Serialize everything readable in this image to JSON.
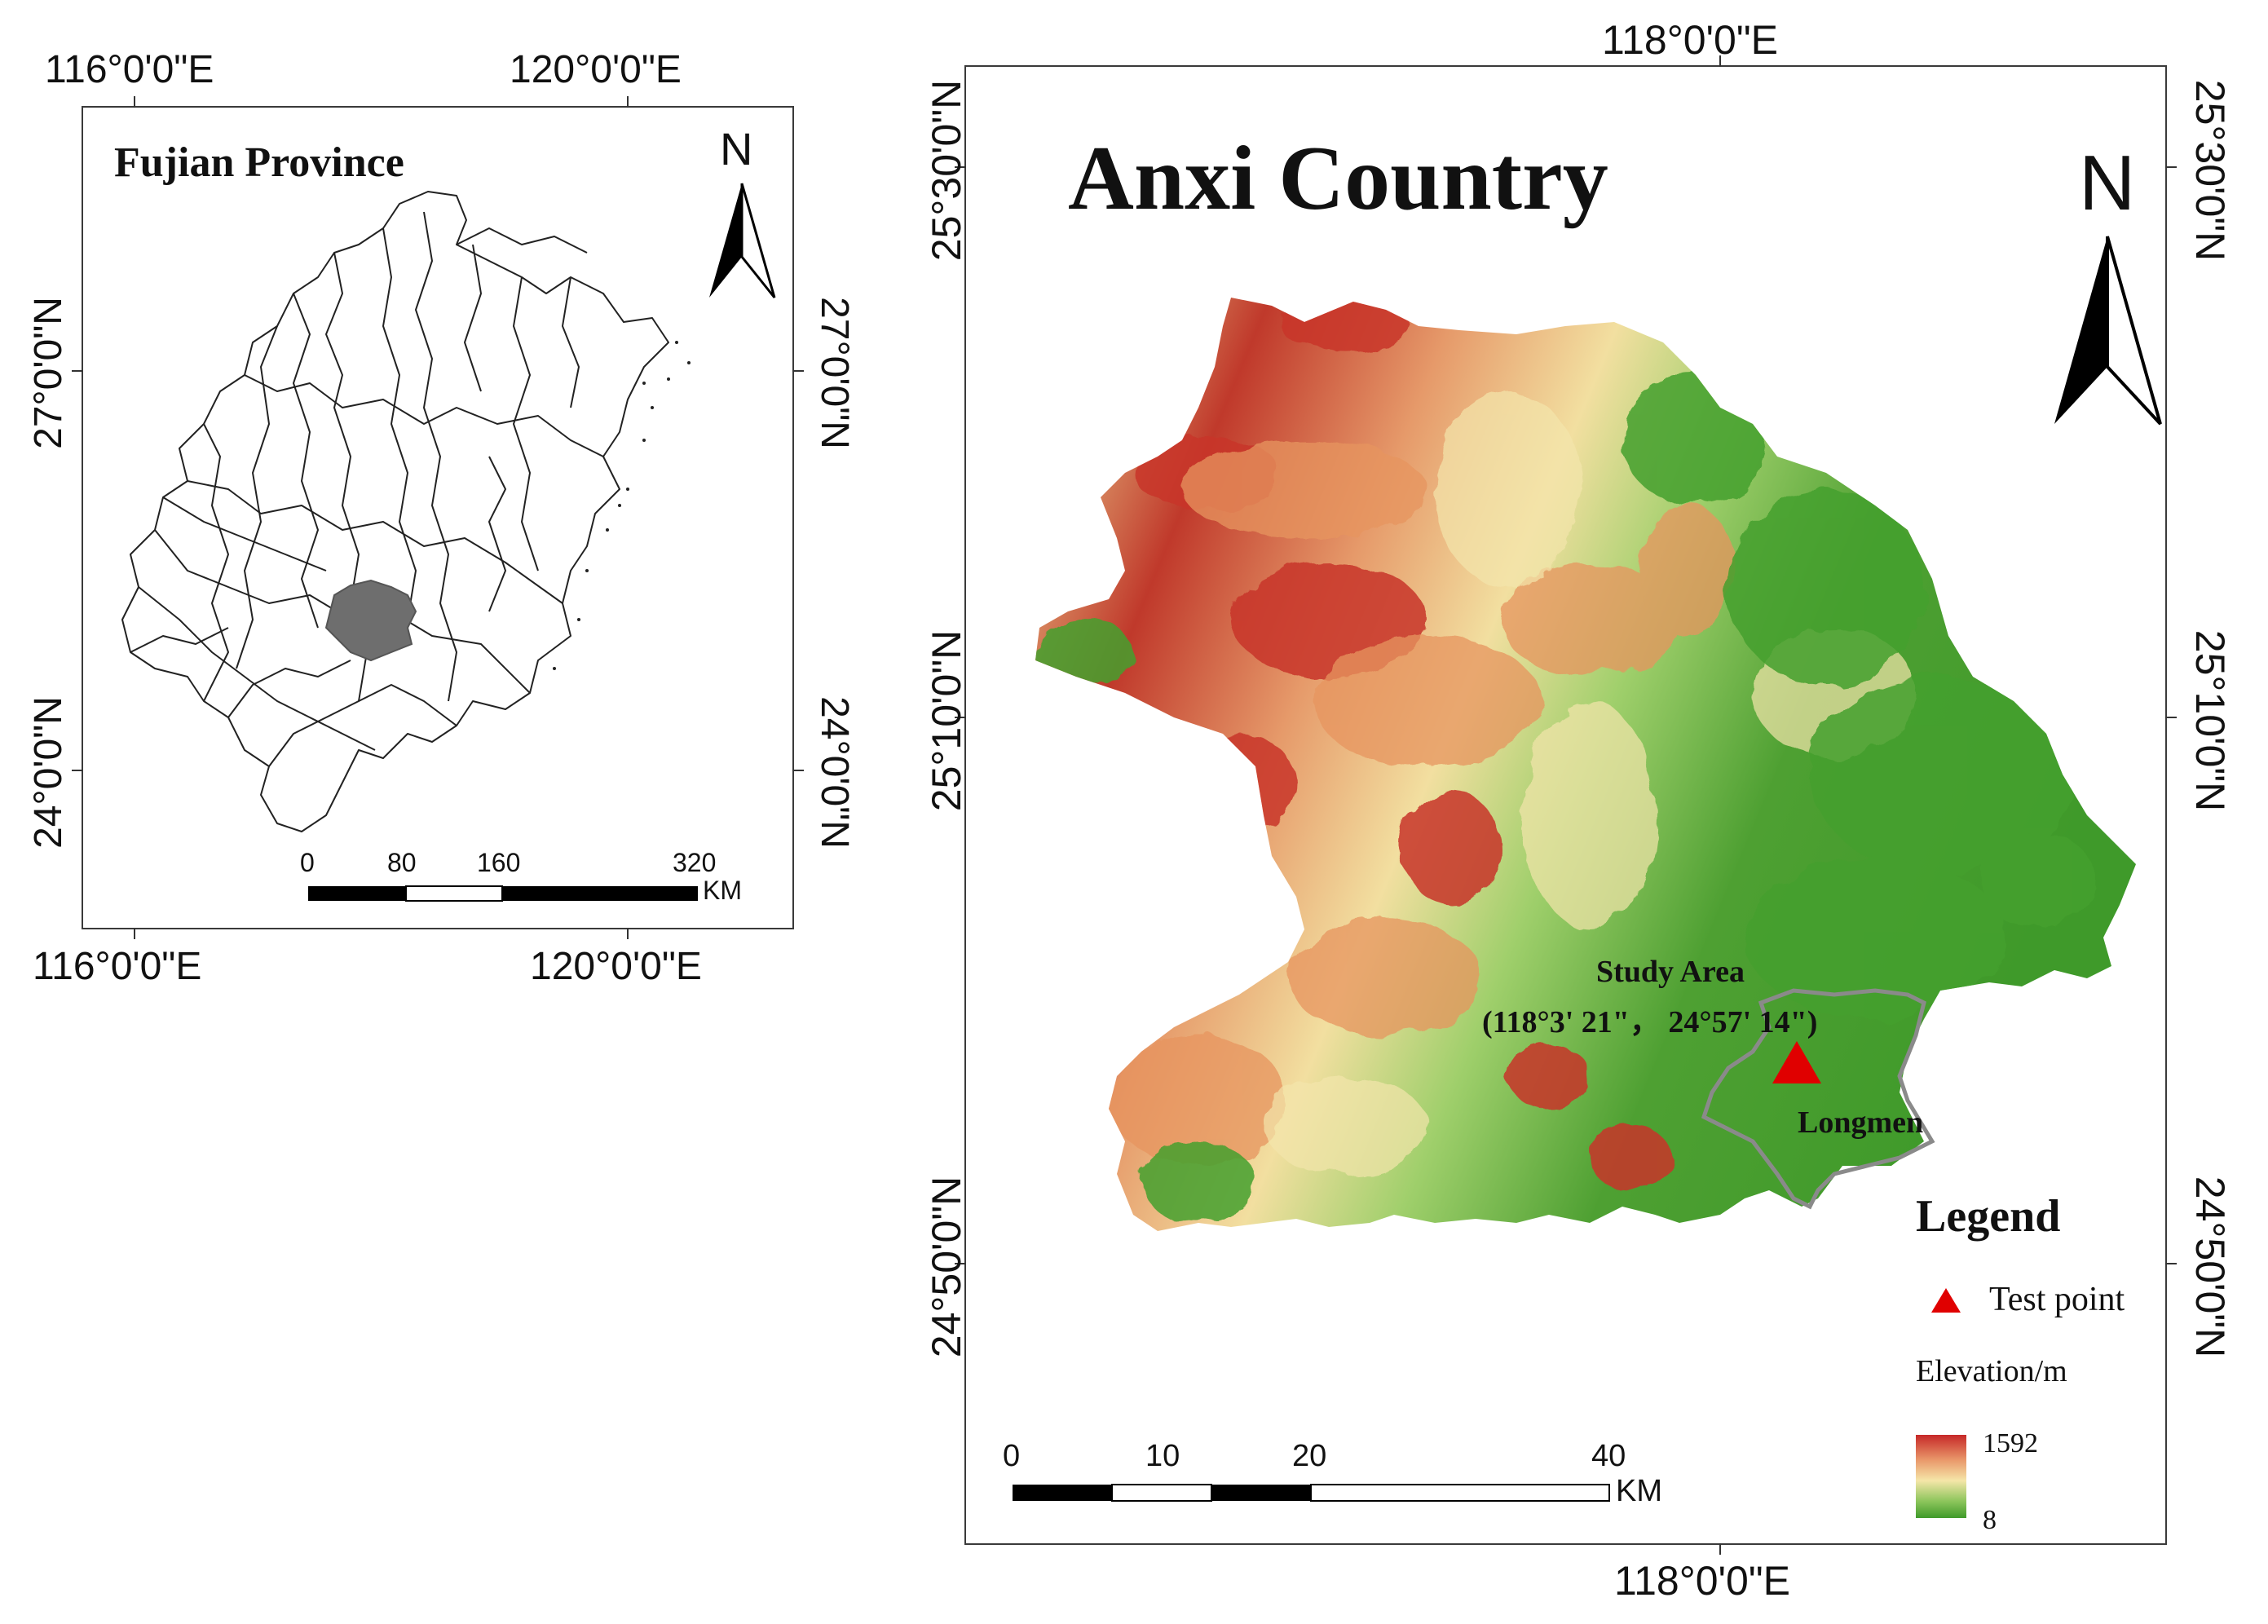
{
  "inset": {
    "title": "Fujian Province",
    "top_labels": [
      "116°0'0\"E",
      "120°0'0\"E"
    ],
    "bottom_labels": [
      "116°0'0\"E",
      "120°0'0\"E"
    ],
    "left_labels": [
      "27°0'0\"N",
      "24°0'0\"N"
    ],
    "right_labels": [
      "27°0'0\"N",
      "24°0'0\"N"
    ],
    "north": "N",
    "scale": {
      "ticks": [
        "0",
        "80",
        "160",
        "320"
      ],
      "unit": "KM"
    }
  },
  "main": {
    "title": "Anxi Country",
    "top_label": "118°0'0\"E",
    "bottom_label": "118°0'0\"E",
    "left_labels": [
      "25°30'0\"N",
      "25°10'0\"N",
      "24°50'0\"N"
    ],
    "right_labels": [
      "25°30'0\"N",
      "25°10'0\"N",
      "24°50'0\"N"
    ],
    "north": "N",
    "study_area": "Study Area",
    "study_coords": "(118°3' 21\"， 24°57' 14\")",
    "place": "Longmen",
    "scale": {
      "ticks": [
        "0",
        "10",
        "20",
        "40"
      ],
      "unit": "KM"
    },
    "legend": {
      "title": "Legend",
      "test_point": "Test point",
      "elevation_title": "Elevation/m",
      "max": "1592",
      "min": "8"
    }
  },
  "colors": {
    "high": "#c62828",
    "mid": "#f5e6a8",
    "low": "#3f9a2a",
    "marker": "#e00000",
    "inset_fill": "#6e6e6e"
  }
}
